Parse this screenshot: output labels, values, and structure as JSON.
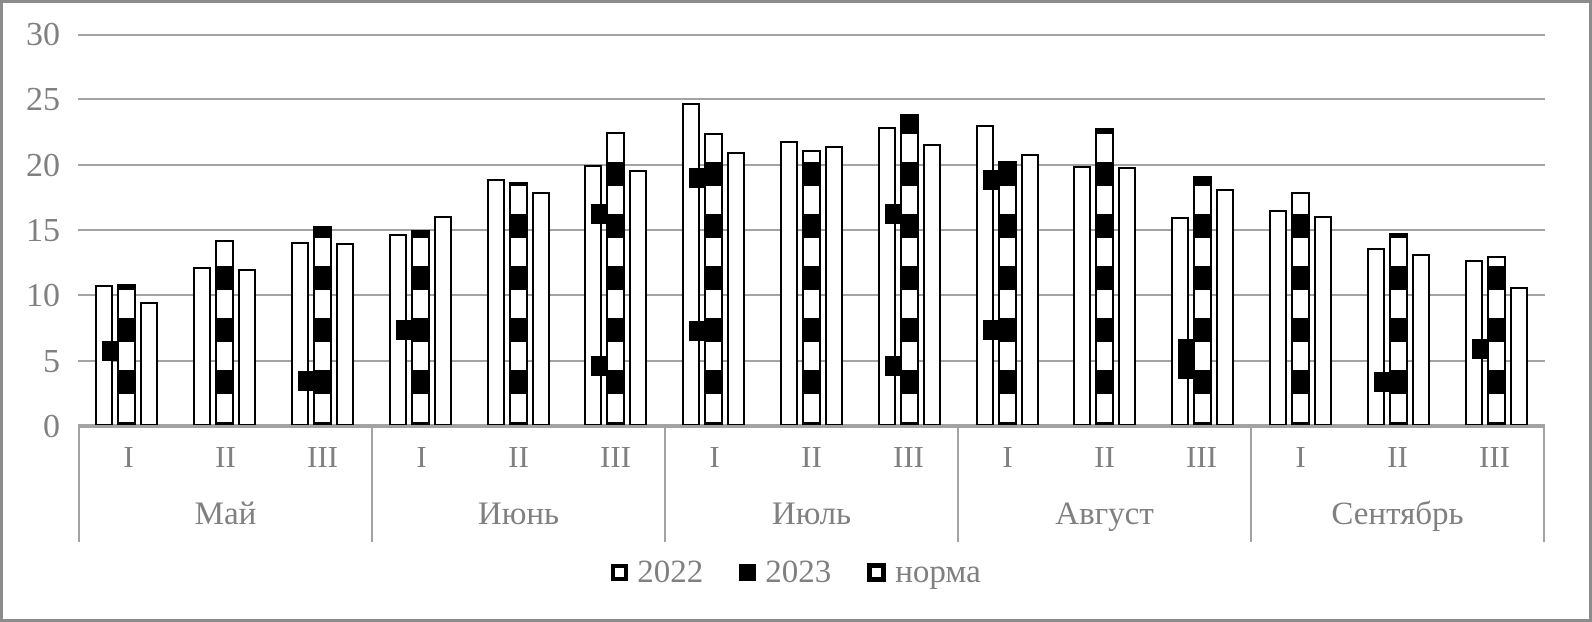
{
  "chart_data": {
    "type": "bar",
    "title": "",
    "xlabel": "",
    "ylabel": "",
    "ylim": [
      0,
      30
    ],
    "yticks": [
      0,
      5,
      10,
      15,
      20,
      25,
      30
    ],
    "grid": true,
    "legend_position": "bottom",
    "bar_order": [
      "2022",
      "2023",
      "норма"
    ],
    "months": [
      {
        "name": "Май",
        "decades": [
          "I",
          "II",
          "III"
        ]
      },
      {
        "name": "Июнь",
        "decades": [
          "I",
          "II",
          "III"
        ]
      },
      {
        "name": "Июль",
        "decades": [
          "I",
          "II",
          "III"
        ]
      },
      {
        "name": "Август",
        "decades": [
          "I",
          "II",
          "III"
        ]
      },
      {
        "name": "Сентябрь",
        "decades": [
          "I",
          "II",
          "III"
        ]
      }
    ],
    "categories": [
      "Май I",
      "Май II",
      "Май III",
      "Июнь I",
      "Июнь II",
      "Июнь III",
      "Июль I",
      "Июль II",
      "Июль III",
      "Август I",
      "Август II",
      "Август III",
      "Сентябрь I",
      "Сентябрь II",
      "Сентябрь III"
    ],
    "series": [
      {
        "name": "2022",
        "fill": "white",
        "values": [
          10.8,
          12.2,
          14.1,
          14.7,
          18.9,
          20.0,
          24.7,
          21.8,
          22.9,
          23.0,
          19.9,
          16.0,
          16.5,
          13.6,
          12.7
        ]
      },
      {
        "name": "2023",
        "fill": "checker",
        "values": [
          10.9,
          14.2,
          15.3,
          15.0,
          18.7,
          22.5,
          22.4,
          21.1,
          23.9,
          20.3,
          22.8,
          19.1,
          17.9,
          14.8,
          13.0
        ]
      },
      {
        "name": "норма",
        "fill": "white",
        "values": [
          9.5,
          12.0,
          14.0,
          16.1,
          17.9,
          19.6,
          21.0,
          21.4,
          21.6,
          20.8,
          19.8,
          18.1,
          16.1,
          13.2,
          10.6
        ]
      }
    ],
    "pattern_tabs": [
      [
        5.8
      ],
      [],
      [
        3.5
      ],
      [
        7.4
      ],
      [],
      [
        16.3,
        4.6
      ],
      [
        19.0,
        7.3
      ],
      [],
      [
        16.3,
        4.6
      ],
      [
        18.9,
        7.4
      ],
      [],
      [
        5.9,
        4.4
      ],
      [],
      [
        3.4
      ],
      [
        5.9
      ]
    ]
  },
  "legend": {
    "items": [
      {
        "label": "2022",
        "swatch": "white-square"
      },
      {
        "label": "2023",
        "swatch": "black-square"
      },
      {
        "label": "норма",
        "swatch": "white-square-thick"
      }
    ]
  },
  "colors": {
    "bar_outline": "#000000",
    "checker_black": "#000000",
    "grid": "#a3a3a3",
    "axis": "#a3a3a3",
    "text": "#808080",
    "frame": "#8c8c8c",
    "background": "#ffffff"
  }
}
